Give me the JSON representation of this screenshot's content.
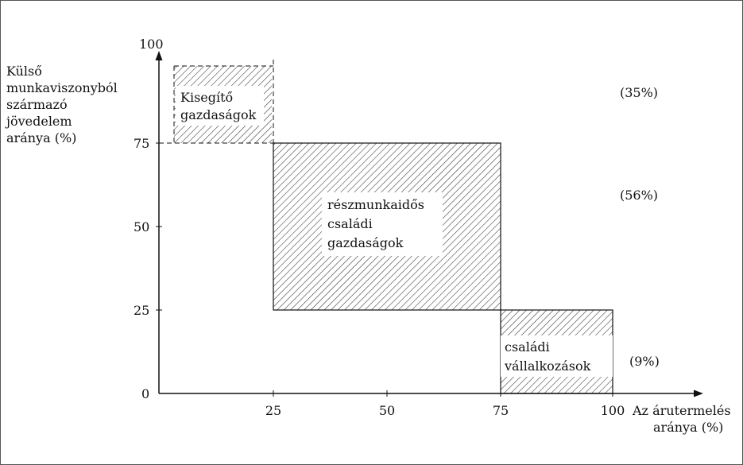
{
  "y_axis": {
    "top_value": "100",
    "title_lines": [
      "Külső",
      "munkaviszonyból",
      "származó",
      "jövedelem",
      "aránya (%)"
    ],
    "ticks": [
      "75",
      "50",
      "25",
      "0"
    ]
  },
  "x_axis": {
    "ticks": [
      "25",
      "50",
      "75",
      "100"
    ],
    "title_lines": [
      "Az árutermelés",
      "aránya (%)"
    ]
  },
  "regions": [
    {
      "id": "kisegito",
      "label_lines": [
        "Kisegítő",
        "gazdaságok"
      ],
      "share": "(35%)",
      "x_range": [
        0,
        25
      ],
      "y_range": [
        75,
        100
      ]
    },
    {
      "id": "reszmunkaidos",
      "label_lines": [
        "részmunkaidős",
        "családi",
        "gazdaságok"
      ],
      "share": "(56%)",
      "x_range": [
        25,
        75
      ],
      "y_range": [
        25,
        75
      ]
    },
    {
      "id": "csaladi",
      "label_lines": [
        "családi",
        "vállalkozások"
      ],
      "share": "(9%)",
      "x_range": [
        75,
        100
      ],
      "y_range": [
        0,
        25
      ]
    }
  ],
  "colors": {
    "ink": "#111111",
    "hatch": "#333333",
    "frame": "#555555",
    "background": "#ffffff"
  }
}
